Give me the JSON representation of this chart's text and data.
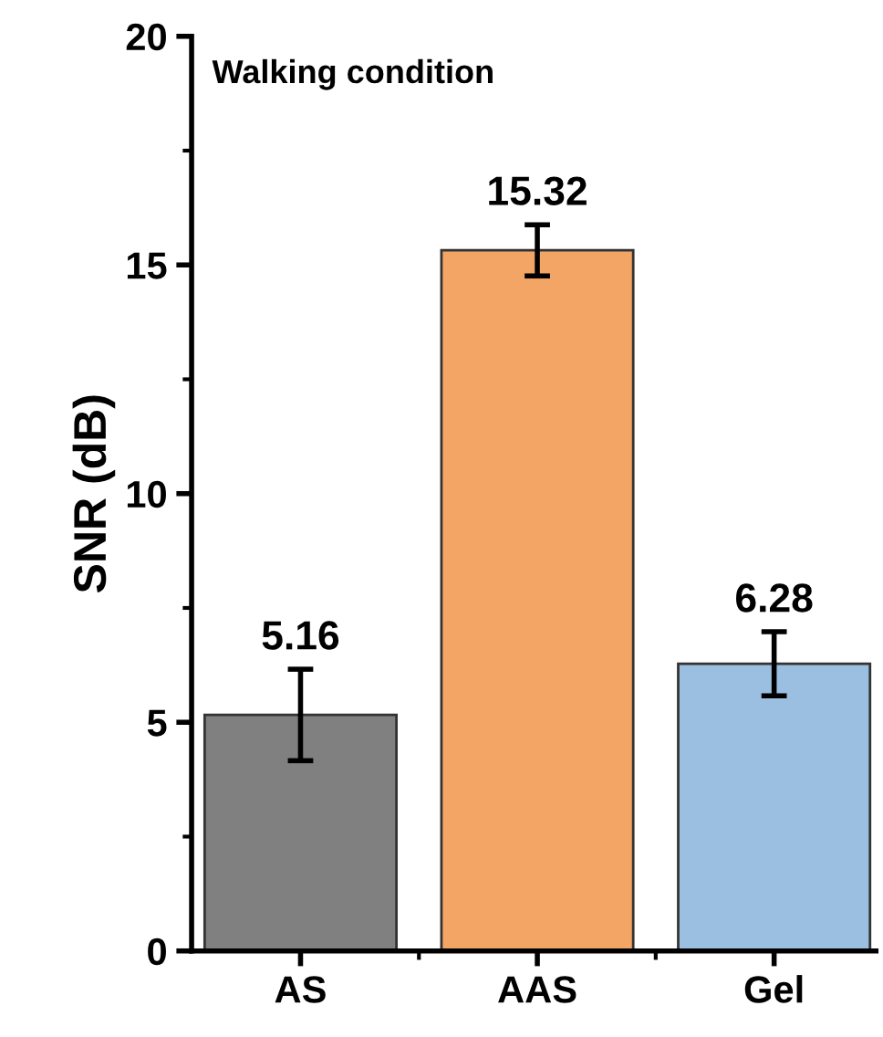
{
  "chart_data": {
    "type": "bar",
    "title": "Walking condition",
    "ylabel": "SNR (dB)",
    "categories": [
      "AS",
      "AAS",
      "Gel"
    ],
    "values": [
      5.16,
      15.32,
      6.28
    ],
    "colors": [
      "#808080",
      "#f2a564",
      "#9bbfe0"
    ],
    "errors": [
      1.0,
      0.56,
      0.7
    ],
    "data_labels": true,
    "ylim": [
      0,
      20
    ],
    "yticks": [
      0,
      5,
      10,
      15,
      20
    ],
    "grid": false
  }
}
